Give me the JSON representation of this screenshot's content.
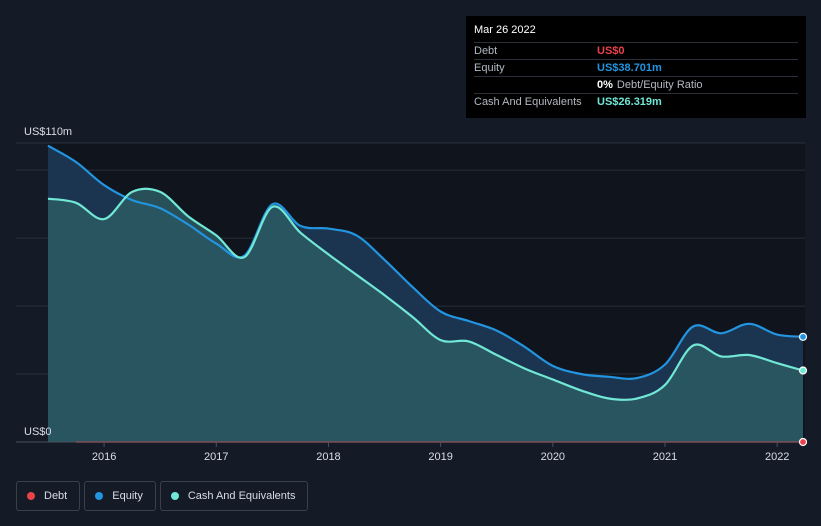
{
  "tooltip": {
    "date": "Mar 26 2022",
    "rows": [
      {
        "label": "Debt",
        "value": "US$0",
        "color": "#e9424b"
      },
      {
        "label": "Equity",
        "value": "US$38.701m",
        "color": "#2394df"
      },
      {
        "label": "",
        "value": "0%",
        "value_suffix": "Debt/Equity Ratio",
        "color": "#ffffff"
      },
      {
        "label": "Cash And Equivalents",
        "value": "US$26.319m",
        "color": "#71e7d6"
      }
    ]
  },
  "legend": [
    {
      "label": "Debt",
      "color": "#e9424b"
    },
    {
      "label": "Equity",
      "color": "#2394df"
    },
    {
      "label": "Cash And Equivalents",
      "color": "#71e7d6"
    }
  ],
  "chart_data": {
    "type": "area",
    "y_top_label": "US$110m",
    "y_bottom_label": "US$0",
    "ylim": [
      0,
      110
    ],
    "xlim": [
      2015.5,
      2022.23
    ],
    "x_ticks": [
      2016,
      2017,
      2018,
      2019,
      2020,
      2021,
      2022
    ],
    "grid": true,
    "legend_position": "bottom-left",
    "series": [
      {
        "name": "Equity",
        "color": "#2394df",
        "points": [
          [
            2015.5,
            109
          ],
          [
            2015.75,
            103
          ],
          [
            2016.0,
            94.5
          ],
          [
            2016.25,
            89
          ],
          [
            2016.5,
            86
          ],
          [
            2016.75,
            80
          ],
          [
            2017.0,
            73
          ],
          [
            2017.25,
            68.5
          ],
          [
            2017.5,
            87.5
          ],
          [
            2017.75,
            79.5
          ],
          [
            2018.0,
            78.5
          ],
          [
            2018.25,
            76
          ],
          [
            2018.5,
            67
          ],
          [
            2018.75,
            57
          ],
          [
            2019.0,
            48
          ],
          [
            2019.25,
            44.5
          ],
          [
            2019.5,
            41
          ],
          [
            2019.75,
            35
          ],
          [
            2020.0,
            28
          ],
          [
            2020.25,
            25
          ],
          [
            2020.5,
            24
          ],
          [
            2020.75,
            23.5
          ],
          [
            2021.0,
            28.5
          ],
          [
            2021.25,
            42.5
          ],
          [
            2021.5,
            40
          ],
          [
            2021.75,
            43.5
          ],
          [
            2022.0,
            39.5
          ],
          [
            2022.23,
            38.7
          ]
        ]
      },
      {
        "name": "Cash And Equivalents",
        "color": "#71e7d6",
        "points": [
          [
            2015.5,
            89.5
          ],
          [
            2015.75,
            88
          ],
          [
            2016.0,
            82
          ],
          [
            2016.25,
            92
          ],
          [
            2016.5,
            92
          ],
          [
            2016.75,
            83
          ],
          [
            2017.0,
            76
          ],
          [
            2017.25,
            68
          ],
          [
            2017.5,
            86.5
          ],
          [
            2017.75,
            77
          ],
          [
            2018.0,
            69
          ],
          [
            2018.25,
            61.5
          ],
          [
            2018.5,
            54
          ],
          [
            2018.75,
            46
          ],
          [
            2019.0,
            37.5
          ],
          [
            2019.25,
            37
          ],
          [
            2019.5,
            32
          ],
          [
            2019.75,
            27
          ],
          [
            2020.0,
            23
          ],
          [
            2020.25,
            19
          ],
          [
            2020.5,
            16
          ],
          [
            2020.75,
            16
          ],
          [
            2021.0,
            21
          ],
          [
            2021.25,
            35.5
          ],
          [
            2021.5,
            31.5
          ],
          [
            2021.75,
            32
          ],
          [
            2022.0,
            29
          ],
          [
            2022.23,
            26.3
          ]
        ]
      },
      {
        "name": "Debt",
        "color": "#e9424b",
        "points": [
          [
            2015.75,
            0
          ],
          [
            2022.23,
            0
          ]
        ]
      }
    ]
  }
}
